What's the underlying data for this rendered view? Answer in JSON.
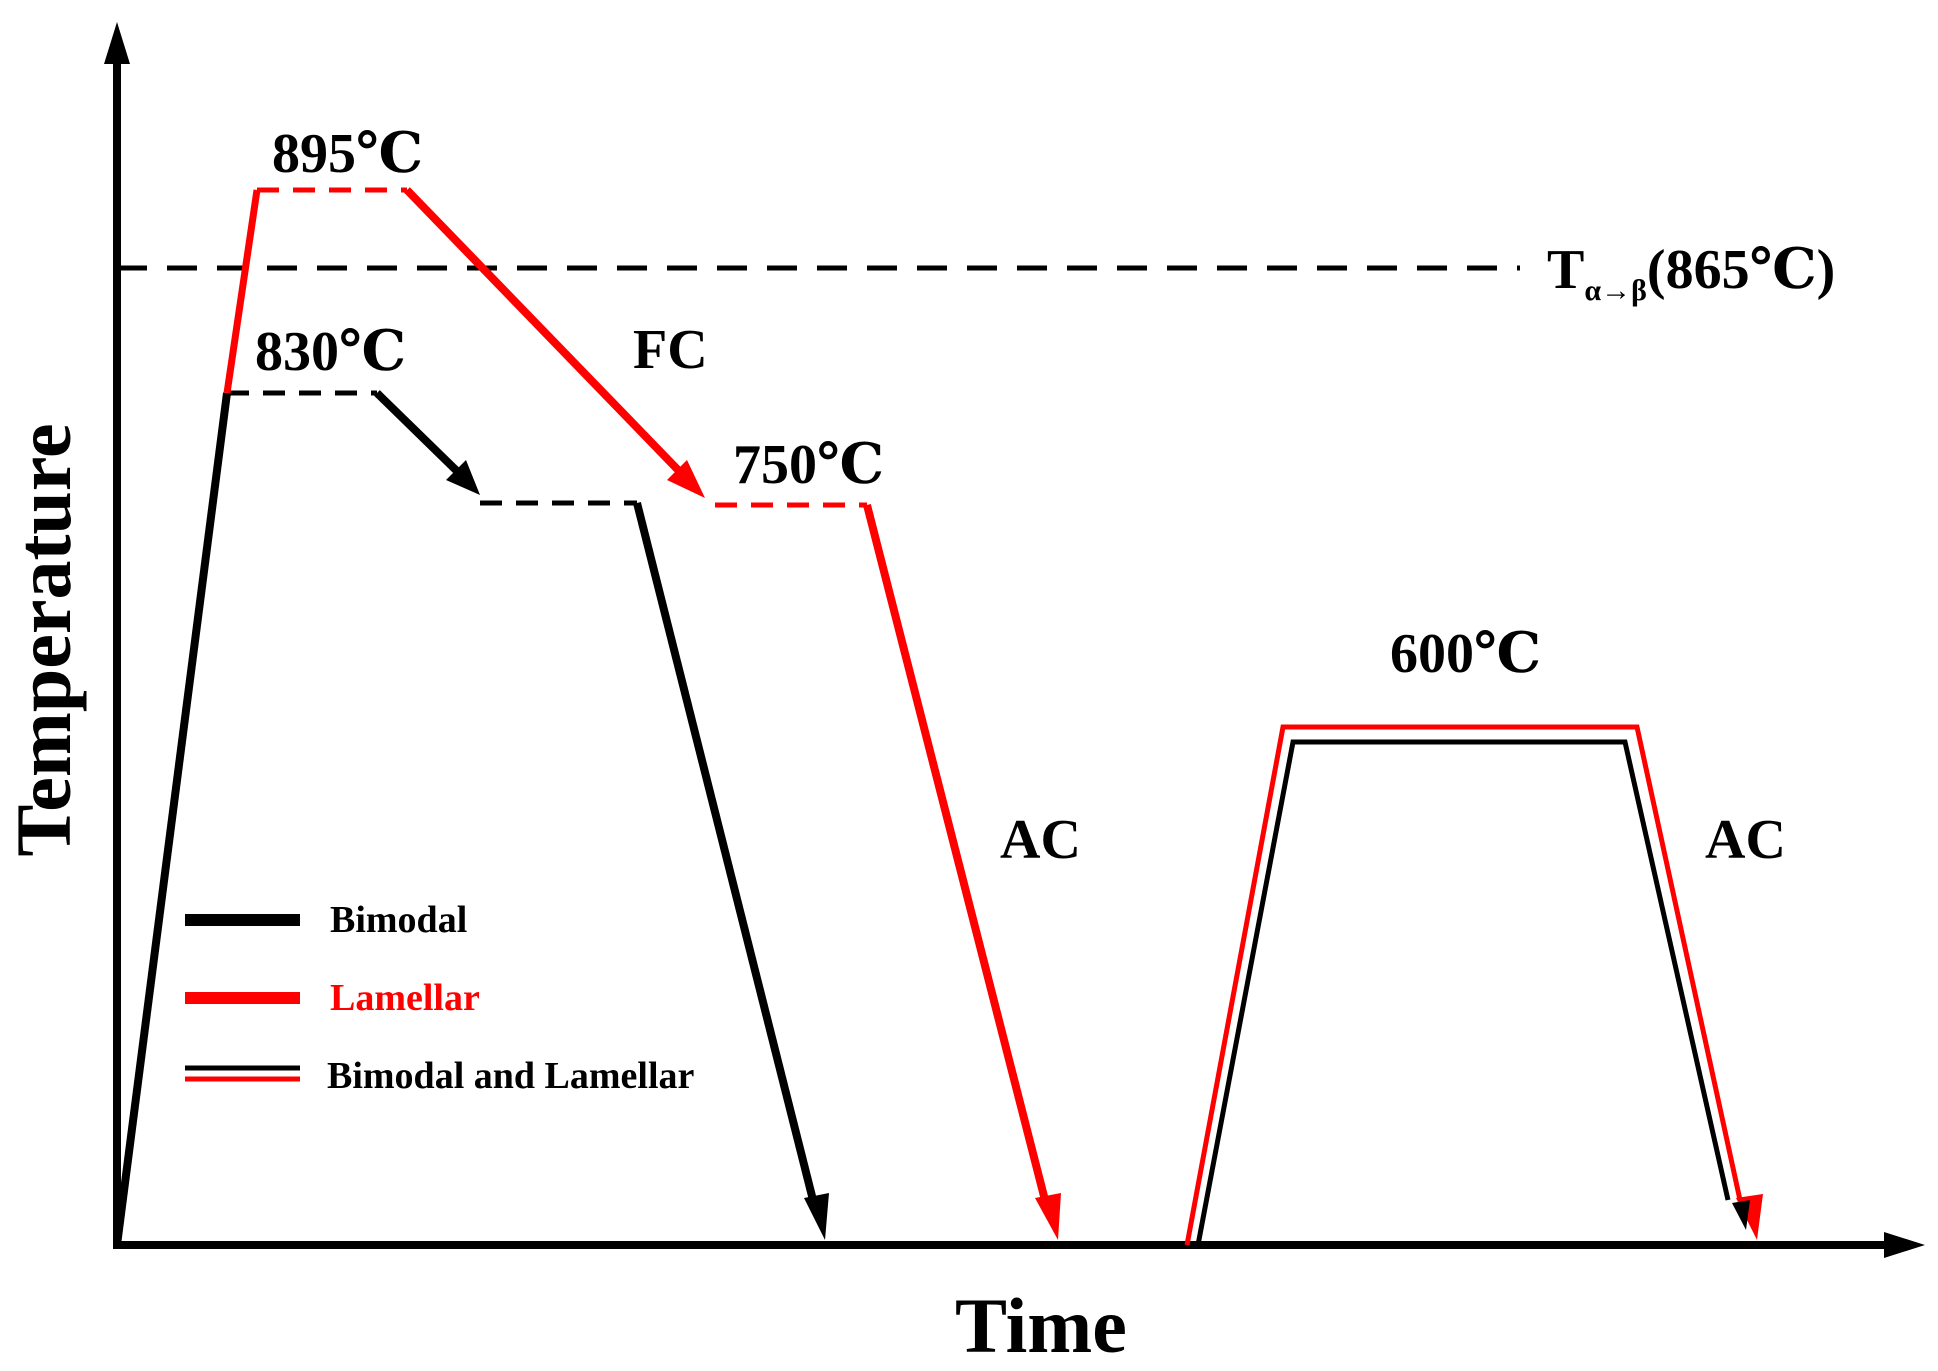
{
  "colors": {
    "bimodal": "#000000",
    "lamellar": "#ff0000",
    "axis": "#000000"
  },
  "axes": {
    "x_title": "Time",
    "y_title": "Temperature"
  },
  "reference": {
    "label_main": "T",
    "label_sub": "α→β",
    "label_temp": "(865℃)"
  },
  "labels": {
    "t895": "895℃",
    "t830": "830℃",
    "t750": "750℃",
    "t600": "600℃",
    "fc": "FC",
    "ac_left": "AC",
    "ac_right": "AC"
  },
  "legend": {
    "items": [
      {
        "label": "Bimodal",
        "style": "black"
      },
      {
        "label": "Lamellar",
        "style": "red"
      },
      {
        "label": "Bimodal and Lamellar",
        "style": "double"
      }
    ]
  }
}
